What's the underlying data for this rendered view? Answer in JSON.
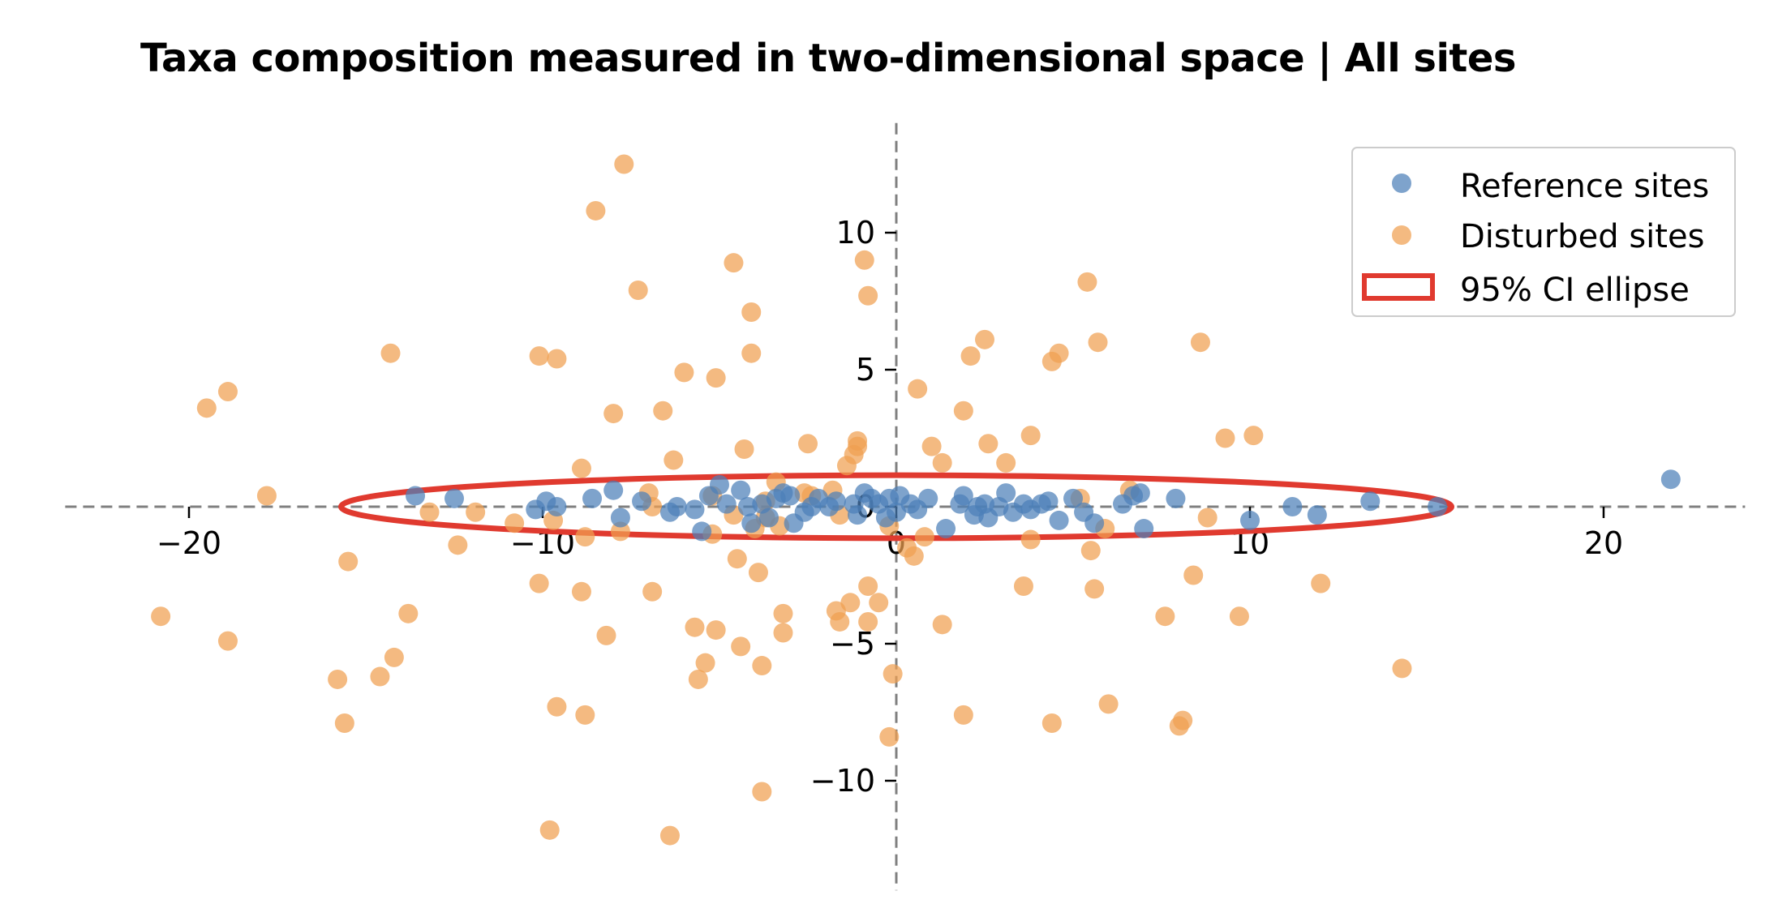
{
  "chart_data": {
    "type": "scatter",
    "title": "Taxa composition measured in two-dimensional space | All sites",
    "xlabel": "",
    "ylabel": "",
    "xlim": [
      -23.5,
      24
    ],
    "ylim": [
      -14,
      14
    ],
    "x_ticks": [
      -20,
      -10,
      0,
      10,
      20
    ],
    "y_ticks": [
      -10,
      -5,
      0,
      5,
      10
    ],
    "x_tick_labels": [
      "−20",
      "−10",
      "0",
      "10",
      "20"
    ],
    "y_tick_labels": [
      "−10",
      "−5",
      "0",
      "5",
      "10"
    ],
    "grid": false,
    "spines": "centered dashed axes",
    "legend_position": "top-right",
    "series": [
      {
        "name": "Reference sites",
        "color": "#4c7fb8",
        "points": [
          [
            -13.6,
            0.4
          ],
          [
            -12.5,
            0.3
          ],
          [
            -10.2,
            -0.1
          ],
          [
            -9.9,
            0.2
          ],
          [
            -9.6,
            0
          ],
          [
            -8.6,
            0.3
          ],
          [
            -8,
            0.6
          ],
          [
            -7.8,
            -0.4
          ],
          [
            -7.2,
            0.2
          ],
          [
            -6.4,
            -0.2
          ],
          [
            -6.2,
            0
          ],
          [
            -5.7,
            -0.1
          ],
          [
            -5.5,
            -0.9
          ],
          [
            -5.3,
            0.4
          ],
          [
            -5,
            0.8
          ],
          [
            -4.8,
            0.1
          ],
          [
            -4.4,
            0.6
          ],
          [
            -4.2,
            0
          ],
          [
            -4.1,
            -0.6
          ],
          [
            -3.8,
            0.1
          ],
          [
            -3.6,
            -0.4
          ],
          [
            -3.4,
            0.3
          ],
          [
            -3.2,
            0.5
          ],
          [
            -3,
            0.4
          ],
          [
            -2.9,
            -0.6
          ],
          [
            -2.6,
            -0.2
          ],
          [
            -2.4,
            0
          ],
          [
            -2.2,
            0.3
          ],
          [
            -1.9,
            0
          ],
          [
            -1.7,
            0.2
          ],
          [
            -1.2,
            0.1
          ],
          [
            -1.1,
            -0.3
          ],
          [
            -0.9,
            0.5
          ],
          [
            -0.7,
            0.3
          ],
          [
            -0.5,
            0.1
          ],
          [
            -0.3,
            -0.4
          ],
          [
            -0.2,
            0.3
          ],
          [
            0,
            -0.2
          ],
          [
            0.1,
            0.4
          ],
          [
            0.4,
            0.1
          ],
          [
            0.6,
            -0.1
          ],
          [
            0.9,
            0.3
          ],
          [
            1.4,
            -0.8
          ],
          [
            1.8,
            0.1
          ],
          [
            1.9,
            0.4
          ],
          [
            2.2,
            -0.3
          ],
          [
            2.3,
            0
          ],
          [
            2.5,
            0.1
          ],
          [
            2.6,
            -0.4
          ],
          [
            2.9,
            0
          ],
          [
            3.1,
            0.5
          ],
          [
            3.3,
            -0.2
          ],
          [
            3.6,
            0.1
          ],
          [
            3.8,
            -0.1
          ],
          [
            4.1,
            0.1
          ],
          [
            4.3,
            0.2
          ],
          [
            4.6,
            -0.5
          ],
          [
            5,
            0.3
          ],
          [
            5.3,
            -0.2
          ],
          [
            5.6,
            -0.6
          ],
          [
            6.4,
            0.1
          ],
          [
            6.7,
            0.4
          ],
          [
            6.9,
            0.5
          ],
          [
            7,
            -0.8
          ],
          [
            7.9,
            0.3
          ],
          [
            10,
            -0.5
          ],
          [
            11.2,
            0
          ],
          [
            11.9,
            -0.3
          ],
          [
            13.4,
            0.2
          ],
          [
            15.3,
            0
          ],
          [
            21.9,
            1
          ]
        ]
      },
      {
        "name": "Disturbed sites",
        "color": "#f0a050",
        "points": [
          [
            -19.5,
            3.6
          ],
          [
            -18.9,
            4.2
          ],
          [
            -17.8,
            0.4
          ],
          [
            -20.8,
            -4
          ],
          [
            -18.9,
            -4.9
          ],
          [
            -15.5,
            -2.0
          ],
          [
            -15.8,
            -6.3
          ],
          [
            -15.6,
            -7.9
          ],
          [
            -14.3,
            5.6
          ],
          [
            -14.6,
            -6.2
          ],
          [
            -14.2,
            -5.5
          ],
          [
            -13.8,
            -3.9
          ],
          [
            -13.2,
            -0.2
          ],
          [
            -12.4,
            -1.4
          ],
          [
            -11.9,
            -0.2
          ],
          [
            -10.8,
            -0.6
          ],
          [
            -10.1,
            5.5
          ],
          [
            -9.6,
            5.4
          ],
          [
            -10.1,
            -2.8
          ],
          [
            -9.7,
            -0.5
          ],
          [
            -9.6,
            -7.3
          ],
          [
            -9.8,
            -11.8
          ],
          [
            -8.9,
            -3.1
          ],
          [
            -8.8,
            -7.6
          ],
          [
            -8.8,
            -1.1
          ],
          [
            -8.9,
            1.4
          ],
          [
            -8.5,
            10.8
          ],
          [
            -8.2,
            -4.7
          ],
          [
            -8.0,
            3.4
          ],
          [
            -7.8,
            -0.9
          ],
          [
            -7.7,
            12.5
          ],
          [
            -7.3,
            7.9
          ],
          [
            -7.0,
            0.5
          ],
          [
            -6.9,
            0
          ],
          [
            -6.9,
            -3.1
          ],
          [
            -6.6,
            3.5
          ],
          [
            -6.3,
            1.7
          ],
          [
            -6.4,
            -12.0
          ],
          [
            -6.0,
            4.9
          ],
          [
            -5.7,
            -4.4
          ],
          [
            -5.6,
            -6.3
          ],
          [
            -5.2,
            0.4
          ],
          [
            -5.2,
            -1.0
          ],
          [
            -5.4,
            -5.7
          ],
          [
            -5.1,
            4.7
          ],
          [
            -5.1,
            -4.5
          ],
          [
            -4.6,
            -0.3
          ],
          [
            -4.4,
            -5.1
          ],
          [
            -4.5,
            -1.9
          ],
          [
            -4.3,
            2.1
          ],
          [
            -4.6,
            8.9
          ],
          [
            -4.1,
            7.1
          ],
          [
            -4.1,
            5.6
          ],
          [
            -4.0,
            -0.8
          ],
          [
            -3.9,
            -2.4
          ],
          [
            -3.7,
            0.2
          ],
          [
            -3.7,
            -0.4
          ],
          [
            -3.8,
            -10.4
          ],
          [
            -3.8,
            -5.8
          ],
          [
            -3.4,
            0.9
          ],
          [
            -3.3,
            -0.7
          ],
          [
            -3.2,
            -3.9
          ],
          [
            -3.2,
            -4.6
          ],
          [
            -2.5,
            2.3
          ],
          [
            -2.6,
            0.5
          ],
          [
            -2.4,
            0.4
          ],
          [
            -1.8,
            0.6
          ],
          [
            -1.7,
            -3.8
          ],
          [
            -1.6,
            -0.3
          ],
          [
            -1.6,
            -4.2
          ],
          [
            -1.4,
            1.5
          ],
          [
            -1.3,
            -3.5
          ],
          [
            -1.2,
            1.9
          ],
          [
            -1.1,
            2.4
          ],
          [
            -1.1,
            2.2
          ],
          [
            -0.9,
            9.0
          ],
          [
            -0.8,
            7.7
          ],
          [
            -0.8,
            -2.9
          ],
          [
            -0.8,
            -4.2
          ],
          [
            -0.5,
            -3.5
          ],
          [
            -0.2,
            -0.7
          ],
          [
            -0.2,
            -8.4
          ],
          [
            -0.1,
            -6.1
          ],
          [
            0.3,
            -1.5
          ],
          [
            0.5,
            -1.8
          ],
          [
            0.6,
            4.3
          ],
          [
            0.8,
            -1.1
          ],
          [
            1.0,
            2.2
          ],
          [
            1.3,
            1.6
          ],
          [
            1.3,
            -4.3
          ],
          [
            1.9,
            -7.6
          ],
          [
            1.9,
            3.5
          ],
          [
            2.1,
            5.5
          ],
          [
            2.5,
            6.1
          ],
          [
            2.6,
            2.3
          ],
          [
            3.1,
            1.6
          ],
          [
            3.6,
            -2.9
          ],
          [
            3.8,
            2.6
          ],
          [
            3.8,
            -1.2
          ],
          [
            4.4,
            5.3
          ],
          [
            4.4,
            -7.9
          ],
          [
            4.6,
            5.6
          ],
          [
            5.2,
            0.3
          ],
          [
            5.4,
            8.2
          ],
          [
            5.5,
            -1.6
          ],
          [
            5.6,
            -3.0
          ],
          [
            5.7,
            6.0
          ],
          [
            5.9,
            -0.8
          ],
          [
            6.0,
            -7.2
          ],
          [
            6.6,
            0.6
          ],
          [
            7.6,
            -4.0
          ],
          [
            8.0,
            -8.0
          ],
          [
            8.1,
            -7.8
          ],
          [
            8.4,
            -2.5
          ],
          [
            8.6,
            6.0
          ],
          [
            8.8,
            -0.4
          ],
          [
            9.3,
            2.5
          ],
          [
            9.7,
            -4.0
          ],
          [
            10.1,
            2.6
          ],
          [
            12.0,
            -2.8
          ],
          [
            14.3,
            -5.9
          ]
        ]
      },
      {
        "name": "95% CI ellipse",
        "color": "#e03a2f",
        "ellipse": {
          "center": [
            0,
            0
          ],
          "width": 31.4,
          "height": 2.3
        }
      }
    ]
  }
}
